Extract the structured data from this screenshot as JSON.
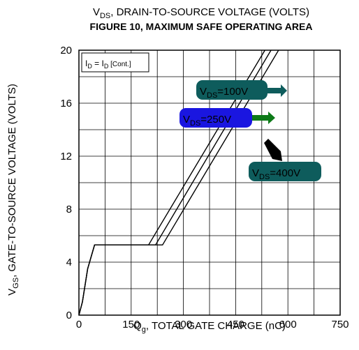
{
  "chart_data": {
    "type": "line",
    "title_top": "V_DS, DRAIN-TO-SOURCE VOLTAGE (VOLTS)",
    "title": "FIGURE 10, MAXIMUM SAFE OPERATING AREA",
    "xlabel": "Q_g, TOTAL GATE CHARGE (nC)",
    "ylabel": "V_GS, GATE-TO-SOURCE VOLTAGE (VOLTS)",
    "xlim": [
      0,
      750
    ],
    "ylim": [
      0,
      20
    ],
    "xticks": [
      0,
      150,
      300,
      450,
      600,
      750
    ],
    "yticks": [
      0,
      4,
      8,
      12,
      16,
      20
    ],
    "grid": true,
    "condition_label": "I_D = I_D [Cont.]",
    "series": [
      {
        "name": "V_DS=100V",
        "color": "#0e5c5c",
        "points": [
          [
            0,
            0
          ],
          [
            10,
            1
          ],
          [
            25,
            3.5
          ],
          [
            45,
            5.3
          ],
          [
            200,
            5.3
          ],
          [
            750,
            29.5
          ]
        ]
      },
      {
        "name": "V_DS=250V",
        "color": "#1a16e0",
        "points": [
          [
            0,
            0
          ],
          [
            10,
            1
          ],
          [
            25,
            3.5
          ],
          [
            45,
            5.3
          ],
          [
            220,
            5.3
          ],
          [
            750,
            28.8
          ]
        ]
      },
      {
        "name": "V_DS=400V",
        "color": "#0e5c5c",
        "points": [
          [
            0,
            0
          ],
          [
            10,
            1
          ],
          [
            25,
            3.5
          ],
          [
            45,
            5.3
          ],
          [
            240,
            5.3
          ],
          [
            750,
            27.8
          ]
        ]
      }
    ],
    "annotations": [
      {
        "label": "V_DS=100V",
        "series": 0
      },
      {
        "label": "V_DS=250V",
        "series": 1
      },
      {
        "label": "V_DS=400V",
        "series": 2
      }
    ]
  }
}
